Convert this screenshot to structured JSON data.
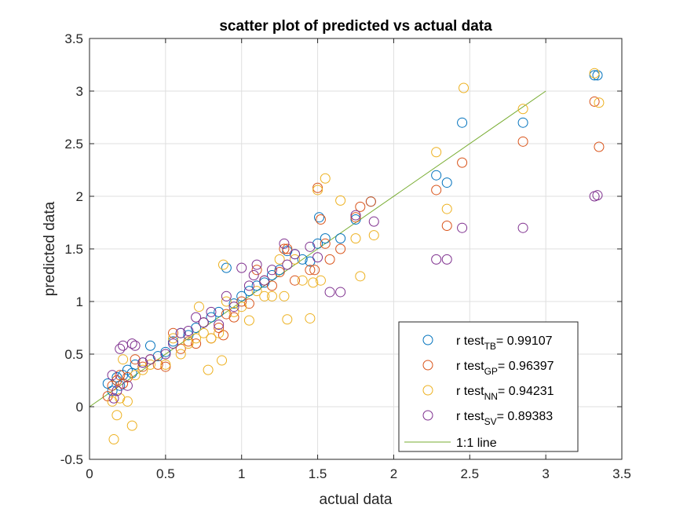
{
  "chart_data": {
    "type": "scatter",
    "title": "scatter plot of predicted vs actual data",
    "xlabel": "actual data",
    "ylabel": "predicted data",
    "xlim": [
      0,
      3.5
    ],
    "ylim": [
      -0.5,
      3.5
    ],
    "xticks": [
      "0",
      "0.5",
      "1",
      "1.5",
      "2",
      "2.5",
      "3",
      "3.5"
    ],
    "yticks": [
      "-0.5",
      "0",
      "0.5",
      "1",
      "1.5",
      "2",
      "2.5",
      "3",
      "3.5"
    ],
    "grid": true,
    "legend_position": "bottom-right",
    "series": [
      {
        "name": "r test_TB = 0.99107",
        "legend_main": "r test",
        "legend_sub": "TB",
        "legend_value": "= 0.99107",
        "color": "#0072BD",
        "points": [
          [
            0.12,
            0.22
          ],
          [
            0.15,
            0.15
          ],
          [
            0.18,
            0.28
          ],
          [
            0.2,
            0.2
          ],
          [
            0.22,
            0.3
          ],
          [
            0.25,
            0.35
          ],
          [
            0.28,
            0.32
          ],
          [
            0.3,
            0.4
          ],
          [
            0.35,
            0.42
          ],
          [
            0.4,
            0.58
          ],
          [
            0.45,
            0.48
          ],
          [
            0.5,
            0.52
          ],
          [
            0.55,
            0.62
          ],
          [
            0.6,
            0.7
          ],
          [
            0.65,
            0.68
          ],
          [
            0.7,
            0.75
          ],
          [
            0.75,
            0.8
          ],
          [
            0.8,
            0.85
          ],
          [
            0.85,
            0.9
          ],
          [
            0.9,
            1.32
          ],
          [
            0.95,
            0.98
          ],
          [
            1.0,
            1.05
          ],
          [
            1.05,
            1.1
          ],
          [
            1.1,
            1.15
          ],
          [
            1.15,
            1.18
          ],
          [
            1.2,
            1.25
          ],
          [
            1.25,
            1.3
          ],
          [
            1.3,
            1.48
          ],
          [
            1.35,
            1.45
          ],
          [
            1.4,
            1.4
          ],
          [
            1.45,
            1.38
          ],
          [
            1.5,
            1.55
          ],
          [
            1.51,
            1.8
          ],
          [
            1.55,
            1.6
          ],
          [
            1.65,
            1.6
          ],
          [
            1.75,
            1.78
          ],
          [
            1.85,
            1.95
          ],
          [
            2.28,
            2.2
          ],
          [
            2.35,
            2.13
          ],
          [
            2.45,
            2.7
          ],
          [
            2.85,
            2.7
          ],
          [
            3.32,
            3.15
          ],
          [
            3.34,
            3.15
          ]
        ]
      },
      {
        "name": "r test_GP = 0.96397",
        "legend_main": "r test",
        "legend_sub": "GP",
        "legend_value": "= 0.96397",
        "color": "#D95319",
        "points": [
          [
            0.12,
            0.1
          ],
          [
            0.15,
            0.2
          ],
          [
            0.18,
            0.25
          ],
          [
            0.2,
            0.3
          ],
          [
            0.22,
            0.22
          ],
          [
            0.25,
            0.28
          ],
          [
            0.3,
            0.45
          ],
          [
            0.35,
            0.38
          ],
          [
            0.4,
            0.45
          ],
          [
            0.45,
            0.4
          ],
          [
            0.5,
            0.38
          ],
          [
            0.55,
            0.7
          ],
          [
            0.6,
            0.55
          ],
          [
            0.65,
            0.62
          ],
          [
            0.7,
            0.6
          ],
          [
            0.75,
            0.8
          ],
          [
            0.8,
            0.65
          ],
          [
            0.85,
            0.75
          ],
          [
            0.88,
            0.68
          ],
          [
            0.9,
            0.88
          ],
          [
            0.95,
            0.85
          ],
          [
            1.0,
            1.0
          ],
          [
            1.05,
            0.98
          ],
          [
            1.1,
            1.3
          ],
          [
            1.15,
            1.2
          ],
          [
            1.2,
            1.15
          ],
          [
            1.25,
            1.28
          ],
          [
            1.28,
            1.5
          ],
          [
            1.3,
            1.5
          ],
          [
            1.35,
            1.2
          ],
          [
            1.45,
            1.3
          ],
          [
            1.48,
            1.3
          ],
          [
            1.5,
            2.08
          ],
          [
            1.52,
            1.78
          ],
          [
            1.55,
            1.55
          ],
          [
            1.58,
            1.4
          ],
          [
            1.65,
            1.5
          ],
          [
            1.75,
            1.8
          ],
          [
            1.78,
            1.9
          ],
          [
            1.85,
            1.95
          ],
          [
            2.28,
            2.06
          ],
          [
            2.35,
            1.72
          ],
          [
            2.45,
            2.32
          ],
          [
            2.85,
            2.52
          ],
          [
            3.32,
            2.9
          ],
          [
            3.35,
            2.47
          ]
        ]
      },
      {
        "name": "r test_NN = 0.94231",
        "legend_main": "r test",
        "legend_sub": "NN",
        "legend_value": "= 0.94231",
        "color": "#EDB120",
        "points": [
          [
            0.15,
            0.05
          ],
          [
            0.16,
            -0.31
          ],
          [
            0.18,
            -0.08
          ],
          [
            0.2,
            0.08
          ],
          [
            0.22,
            0.45
          ],
          [
            0.25,
            0.05
          ],
          [
            0.28,
            -0.18
          ],
          [
            0.3,
            0.3
          ],
          [
            0.35,
            0.35
          ],
          [
            0.4,
            0.4
          ],
          [
            0.5,
            0.4
          ],
          [
            0.55,
            0.65
          ],
          [
            0.6,
            0.5
          ],
          [
            0.65,
            0.6
          ],
          [
            0.7,
            0.65
          ],
          [
            0.72,
            0.95
          ],
          [
            0.75,
            0.7
          ],
          [
            0.78,
            0.35
          ],
          [
            0.8,
            0.65
          ],
          [
            0.85,
            0.7
          ],
          [
            0.87,
            0.44
          ],
          [
            0.88,
            1.35
          ],
          [
            0.9,
            1.0
          ],
          [
            0.95,
            0.9
          ],
          [
            1.0,
            0.95
          ],
          [
            1.05,
            0.82
          ],
          [
            1.1,
            1.1
          ],
          [
            1.15,
            1.05
          ],
          [
            1.2,
            1.05
          ],
          [
            1.25,
            1.4
          ],
          [
            1.28,
            1.05
          ],
          [
            1.3,
            0.83
          ],
          [
            1.35,
            1.4
          ],
          [
            1.4,
            1.2
          ],
          [
            1.45,
            0.84
          ],
          [
            1.47,
            1.18
          ],
          [
            1.5,
            2.06
          ],
          [
            1.52,
            1.2
          ],
          [
            1.55,
            2.17
          ],
          [
            1.65,
            1.96
          ],
          [
            1.75,
            1.6
          ],
          [
            1.78,
            1.24
          ],
          [
            1.87,
            1.63
          ],
          [
            2.28,
            2.42
          ],
          [
            2.35,
            1.88
          ],
          [
            2.46,
            3.03
          ],
          [
            2.85,
            2.83
          ],
          [
            3.32,
            3.17
          ],
          [
            3.35,
            2.89
          ]
        ]
      },
      {
        "name": "r test_SV = 0.89383",
        "legend_main": "r test",
        "legend_sub": "SV",
        "legend_value": "= 0.89383",
        "color": "#7E2F8E",
        "points": [
          [
            0.15,
            0.3
          ],
          [
            0.16,
            0.08
          ],
          [
            0.18,
            0.15
          ],
          [
            0.2,
            0.55
          ],
          [
            0.22,
            0.58
          ],
          [
            0.25,
            0.2
          ],
          [
            0.28,
            0.6
          ],
          [
            0.3,
            0.58
          ],
          [
            0.35,
            0.42
          ],
          [
            0.4,
            0.45
          ],
          [
            0.5,
            0.5
          ],
          [
            0.55,
            0.6
          ],
          [
            0.6,
            0.7
          ],
          [
            0.65,
            0.72
          ],
          [
            0.7,
            0.85
          ],
          [
            0.75,
            0.8
          ],
          [
            0.8,
            0.9
          ],
          [
            0.85,
            0.78
          ],
          [
            0.9,
            1.05
          ],
          [
            0.95,
            0.95
          ],
          [
            1.0,
            1.32
          ],
          [
            1.05,
            1.15
          ],
          [
            1.08,
            1.25
          ],
          [
            1.1,
            1.35
          ],
          [
            1.15,
            1.2
          ],
          [
            1.2,
            1.3
          ],
          [
            1.28,
            1.55
          ],
          [
            1.3,
            1.35
          ],
          [
            1.35,
            1.45
          ],
          [
            1.45,
            1.52
          ],
          [
            1.5,
            1.42
          ],
          [
            1.58,
            1.09
          ],
          [
            1.65,
            1.09
          ],
          [
            1.75,
            1.82
          ],
          [
            1.87,
            1.76
          ],
          [
            2.28,
            1.4
          ],
          [
            2.35,
            1.4
          ],
          [
            2.45,
            1.7
          ],
          [
            2.85,
            1.7
          ],
          [
            3.32,
            2.0
          ],
          [
            3.34,
            2.01
          ]
        ]
      }
    ],
    "reference_line": {
      "label": "1:1 line",
      "color": "#77AC30",
      "from": [
        0,
        0
      ],
      "to": [
        3,
        3
      ]
    }
  }
}
